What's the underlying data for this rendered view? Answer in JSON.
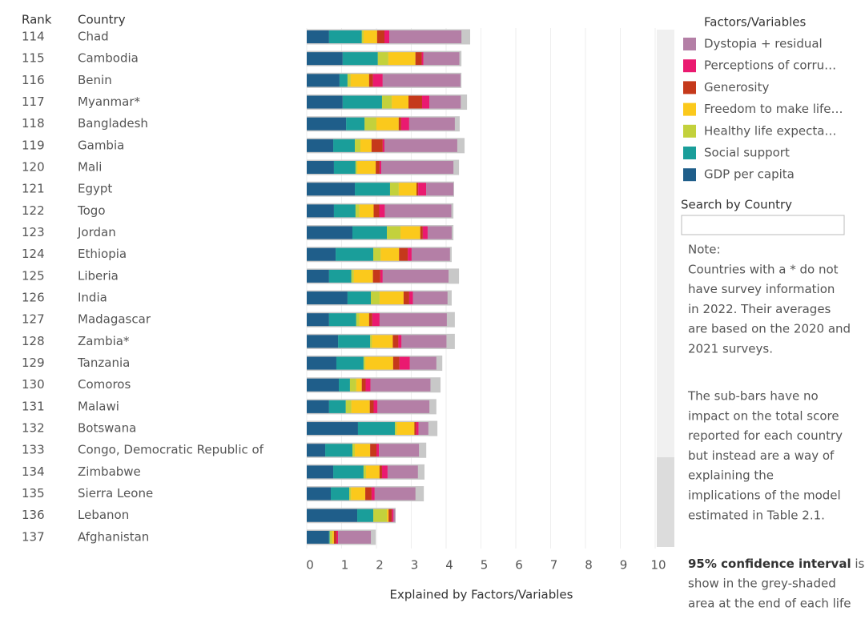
{
  "chart_data": {
    "type": "stacked-bar",
    "rank_header": "Rank",
    "category_header": "Country",
    "xlabel": "Explained by Factors/Variables",
    "ranks": [
      "114",
      "115",
      "116",
      "117",
      "118",
      "119",
      "120",
      "121",
      "122",
      "123",
      "124",
      "125",
      "126",
      "127",
      "128",
      "129",
      "130",
      "131",
      "132",
      "133",
      "134",
      "135",
      "136",
      "137"
    ],
    "categories": [
      "Chad",
      "Cambodia",
      "Benin",
      "Myanmar*",
      "Bangladesh",
      "Gambia",
      "Mali",
      "Egypt",
      "Togo",
      "Jordan",
      "Ethiopia",
      "Liberia",
      "India",
      "Madagascar",
      "Zambia*",
      "Tanzania",
      "Comoros",
      "Malawi",
      "Botswana",
      "Congo, Democratic Republic of",
      "Zimbabwe",
      "Sierra Leone",
      "Lebanon",
      "Afghanistan"
    ],
    "legend_title": "Factors/Variables",
    "series": [
      {
        "name": "Dystopia + residual",
        "color": "#b47fa6",
        "values": [
          2.07,
          1.03,
          2.23,
          0.9,
          1.31,
          2.09,
          2.07,
          0.78,
          1.91,
          0.69,
          1.1,
          1.89,
          0.99,
          1.93,
          1.29,
          0.76,
          1.72,
          1.49,
          0.28,
          1.15,
          0.87,
          1.17,
          0.05,
          0.94
        ]
      },
      {
        "name": "Perceptions of corru…",
        "color": "#ea1a70",
        "values": [
          0.14,
          0.05,
          0.28,
          0.21,
          0.23,
          0.05,
          0.05,
          0.23,
          0.16,
          0.14,
          0.11,
          0.07,
          0.11,
          0.21,
          0.09,
          0.3,
          0.14,
          0.11,
          0.07,
          0.07,
          0.16,
          0.09,
          0.05,
          0.05
        ]
      },
      {
        "name": "Generosity",
        "color": "#c5391b",
        "values": [
          0.21,
          0.18,
          0.11,
          0.39,
          0.07,
          0.32,
          0.11,
          0.05,
          0.16,
          0.07,
          0.25,
          0.21,
          0.16,
          0.09,
          0.16,
          0.18,
          0.11,
          0.11,
          0.05,
          0.18,
          0.07,
          0.18,
          0.09,
          0.07
        ]
      },
      {
        "name": "Freedom to make life…",
        "color": "#fbc91c",
        "values": [
          0.39,
          0.78,
          0.53,
          0.48,
          0.64,
          0.32,
          0.53,
          0.51,
          0.41,
          0.57,
          0.53,
          0.55,
          0.69,
          0.28,
          0.6,
          0.8,
          0.16,
          0.53,
          0.51,
          0.44,
          0.39,
          0.41,
          0.05,
          0.05
        ]
      },
      {
        "name": "Healthy life expecta…",
        "color": "#c3d13c",
        "values": [
          0.05,
          0.3,
          0.09,
          0.28,
          0.34,
          0.16,
          0.05,
          0.25,
          0.11,
          0.39,
          0.21,
          0.07,
          0.25,
          0.09,
          0.05,
          0.05,
          0.18,
          0.16,
          0.05,
          0.07,
          0.07,
          0.05,
          0.39,
          0.07
        ]
      },
      {
        "name": "Social support",
        "color": "#1a9e9a",
        "values": [
          0.94,
          1.01,
          0.23,
          1.13,
          0.53,
          0.62,
          0.62,
          1.01,
          0.62,
          0.99,
          1.08,
          0.64,
          0.67,
          0.78,
          0.92,
          0.78,
          0.32,
          0.48,
          1.06,
          0.78,
          0.87,
          0.53,
          0.46,
          0.02
        ]
      },
      {
        "name": "GDP per capita",
        "color": "#1f5e8a",
        "values": [
          0.64,
          1.03,
          0.94,
          1.03,
          1.13,
          0.76,
          0.78,
          1.38,
          0.78,
          1.31,
          0.83,
          0.64,
          1.17,
          0.64,
          0.9,
          0.85,
          0.92,
          0.64,
          1.47,
          0.53,
          0.76,
          0.69,
          1.45,
          0.64
        ]
      }
    ],
    "ci_upper": [
      4.69,
      4.44,
      4.44,
      4.6,
      4.39,
      4.53,
      4.37,
      4.23,
      4.21,
      4.21,
      4.16,
      4.37,
      4.16,
      4.25,
      4.25,
      3.89,
      3.84,
      3.72,
      3.75,
      3.43,
      3.38,
      3.36,
      2.55,
      1.98
    ],
    "ci_color": "#c8c8c8",
    "xlim": [
      0,
      10
    ],
    "xticks": [
      0,
      1,
      2,
      3,
      4,
      5,
      6,
      7,
      8,
      9,
      10
    ],
    "grid": true
  },
  "panel": {
    "search_label": "Search by Country",
    "note": [
      "Note:",
      "Countries with a * do not",
      "have survey information",
      "in 2022. Their averages",
      "are based on the 2020 and",
      "2021 surveys."
    ],
    "subbars": [
      "The sub-bars have no",
      "impact on the total score",
      "reported for each country",
      "but instead are a way of",
      "explaining the",
      "implications of the model",
      "estimated in Table 2.1."
    ],
    "ci_bold": "95% confidence interval",
    "ci_rest": " is",
    "ci_lines": [
      "show in the grey-shaded",
      "area at the end of each life"
    ]
  }
}
